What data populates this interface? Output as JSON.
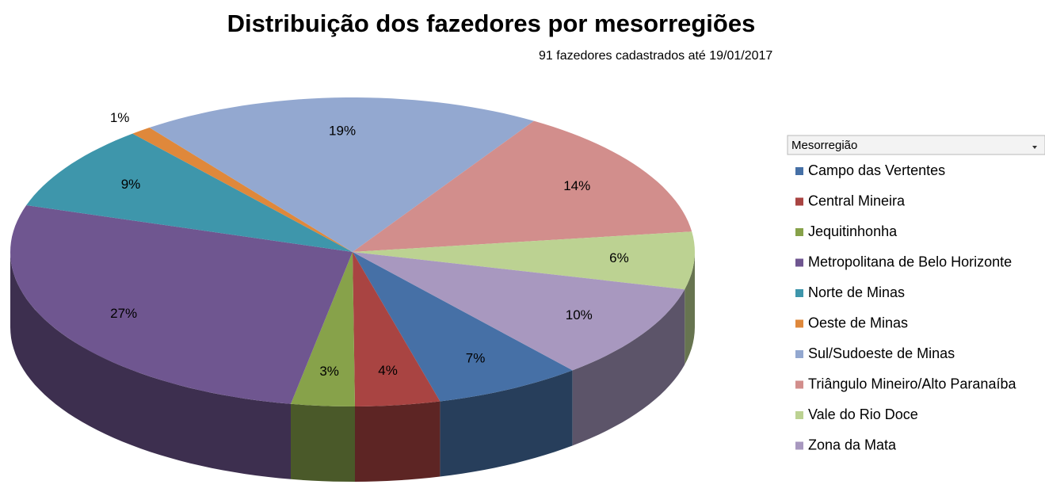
{
  "chart_data": {
    "type": "pie",
    "title": "Distribuição dos fazedores por mesorregiões",
    "subtitle": "91 fazedores cadastrados até 19/01/2017",
    "legend_title": "Mesorregião",
    "legend": "right",
    "categories": [
      "Campo das Vertentes",
      "Central Mineira",
      "Jequitinhonha",
      "Metropolitana de Belo Horizonte",
      "Norte de Minas",
      "Oeste de Minas",
      "Sul/Sudoeste de Minas",
      "Triângulo Mineiro/Alto Paranaíba",
      "Vale do Rio Doce",
      "Zona da Mata"
    ],
    "values": [
      7,
      4,
      3,
      27,
      9,
      1,
      19,
      14,
      6,
      10
    ],
    "value_labels": [
      "7%",
      "4%",
      "3%",
      "27%",
      "9%",
      "1%",
      "19%",
      "14%",
      "6%",
      "10%"
    ],
    "colors": [
      "#4670a6",
      "#a94442",
      "#87a24a",
      "#6f5690",
      "#3e96ab",
      "#df883b",
      "#93a8d0",
      "#d28e8c",
      "#bcd292",
      "#a898bf"
    ]
  }
}
